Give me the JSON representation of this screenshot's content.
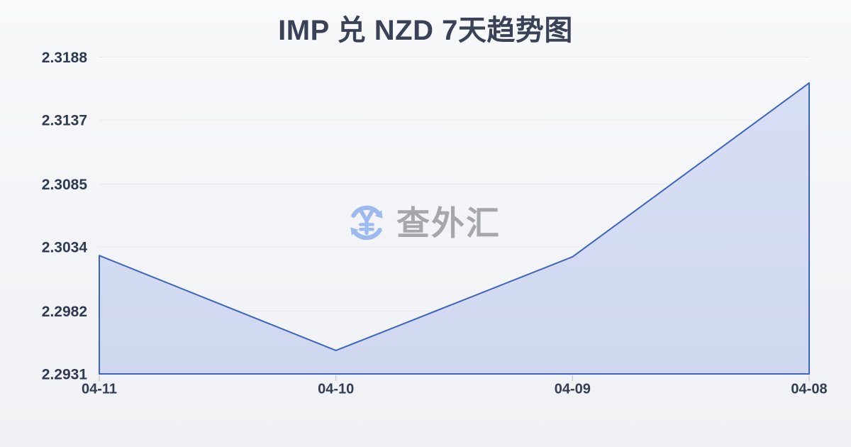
{
  "title": {
    "text": "IMP 兑 NZD 7天趋势图",
    "color": "#394257"
  },
  "watermark": {
    "icon": "currency-exchange-icon",
    "brand_text": "查外汇",
    "icon_color": "#9cbaef",
    "text_color": "#a5a7ab"
  },
  "chart_data": {
    "type": "area",
    "title": "IMP 兑 NZD 7天趋势图",
    "categories": [
      "04-11",
      "04-10",
      "04-09",
      "04-08"
    ],
    "values": [
      2.3027,
      2.295,
      2.3026,
      2.3167
    ],
    "y_ticks": [
      2.2931,
      2.2982,
      2.3034,
      2.3085,
      2.3137,
      2.3188
    ],
    "ylim": [
      2.2931,
      2.3188
    ],
    "xlabel": "",
    "ylabel": "",
    "grid": true,
    "legend_position": "none",
    "line_color": "#3d64c0",
    "fill_color_top": "#d7def4",
    "fill_color_bottom": "#d0d8f0",
    "gridline_color": "#e7e9ed",
    "tick_color": "#c9cdd4",
    "y_label_color": "#2f3950",
    "x_label_color": "#333d52"
  }
}
